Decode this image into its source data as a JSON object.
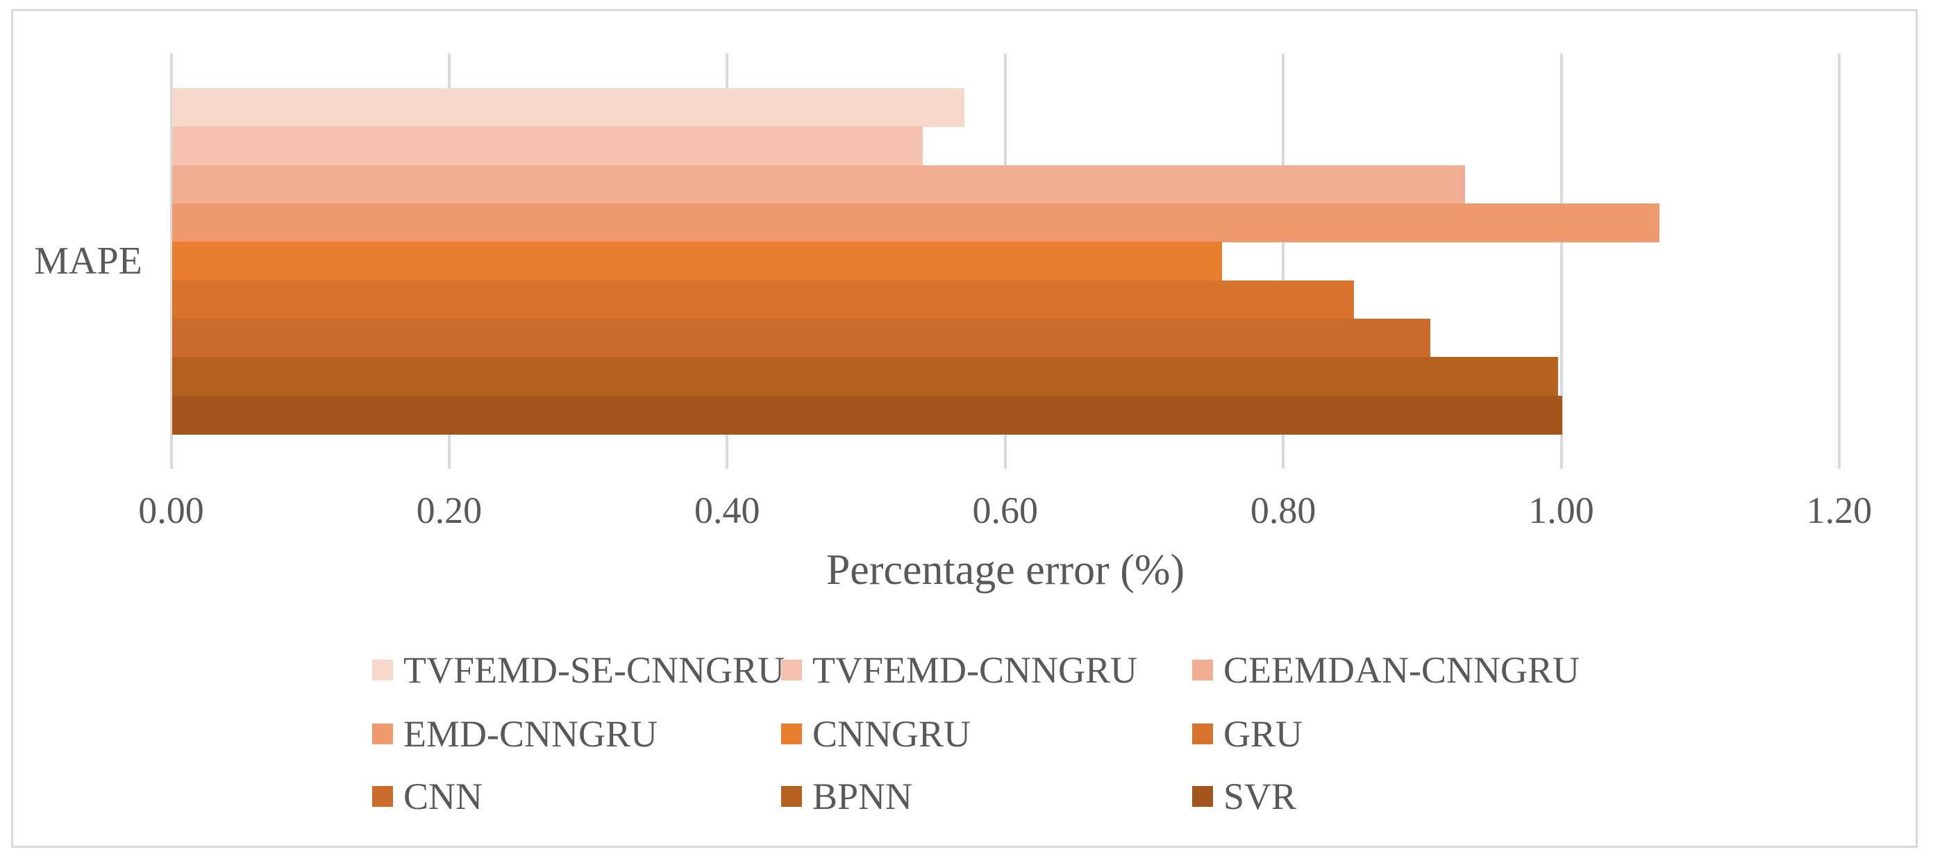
{
  "chart_data": {
    "type": "bar",
    "orientation": "horizontal",
    "categories": [
      "MAPE"
    ],
    "category_label": "MAPE",
    "series": [
      {
        "name": "TVFEMD-SE-CNNGRU",
        "value": 0.57,
        "color": "#F7D9CC"
      },
      {
        "name": "TVFEMD-CNNGRU",
        "value": 0.54,
        "color": "#F4C2AF"
      },
      {
        "name": "CEEMDAN-CNNGRU",
        "value": 0.93,
        "color": "#F2AE93"
      },
      {
        "name": "EMD-CNNGRU",
        "value": 1.07,
        "color": "#EF9A6E"
      },
      {
        "name": "CNNGRU",
        "value": 0.755,
        "color": "#E87E2E"
      },
      {
        "name": "GRU",
        "value": 0.85,
        "color": "#D7732D"
      },
      {
        "name": "CNN",
        "value": 0.905,
        "color": "#CA6C2C"
      },
      {
        "name": "BPNN",
        "value": 0.997,
        "color": "#B5621F"
      },
      {
        "name": "SVR",
        "value": 1.0,
        "color": "#A4551E"
      }
    ],
    "title": "",
    "xlabel": "Percentage error (%)",
    "ylabel": "MAPE",
    "xlim": [
      0.0,
      1.2
    ],
    "xtick_labels": [
      "0.00",
      "0.20",
      "0.40",
      "0.60",
      "0.80",
      "1.00",
      "1.20"
    ],
    "grid": true,
    "legend_position": "bottom",
    "legend_rows": [
      [
        "TVFEMD-SE-CNNGRU",
        "TVFEMD-CNNGRU",
        "CEEMDAN-CNNGRU"
      ],
      [
        "EMD-CNNGRU",
        "CNNGRU",
        "GRU"
      ],
      [
        "CNN",
        "BPNN",
        "SVR"
      ]
    ]
  },
  "style": {
    "gridline_color": "#D9D9D9",
    "axis_line_color": "#D9D9D9",
    "border_color": "#D9D9D9",
    "text_color": "#595959",
    "background_color": "#FFFFFF"
  }
}
